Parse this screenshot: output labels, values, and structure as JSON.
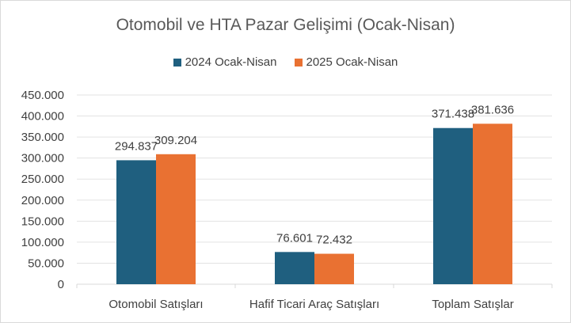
{
  "chart_data": {
    "type": "bar",
    "title": "Otomobil ve HTA Pazar Gelişimi (Ocak-Nisan)",
    "categories": [
      "Otomobil Satışları",
      "Hafif Ticari Araç Satışları",
      "Toplam Satışlar"
    ],
    "series": [
      {
        "name": "2024 Ocak-Nisan",
        "values": [
          294837,
          76601,
          371438
        ],
        "labels": [
          "294.837",
          "76.601",
          "371.438"
        ],
        "color": "#1f5f7f"
      },
      {
        "name": "2025 Ocak-Nisan",
        "values": [
          309204,
          72432,
          381636
        ],
        "labels": [
          "309.204",
          "72.432",
          "381.636"
        ],
        "color": "#e97132"
      }
    ],
    "ylim": [
      0,
      450000
    ],
    "yticks": [
      0,
      50000,
      100000,
      150000,
      200000,
      250000,
      300000,
      350000,
      400000,
      450000
    ],
    "ytick_labels": [
      "0",
      "50.000",
      "100.000",
      "150.000",
      "200.000",
      "250.000",
      "300.000",
      "350.000",
      "400.000",
      "450.000"
    ],
    "xlabel": "",
    "ylabel": "",
    "grid": true,
    "legend": "top-center"
  }
}
